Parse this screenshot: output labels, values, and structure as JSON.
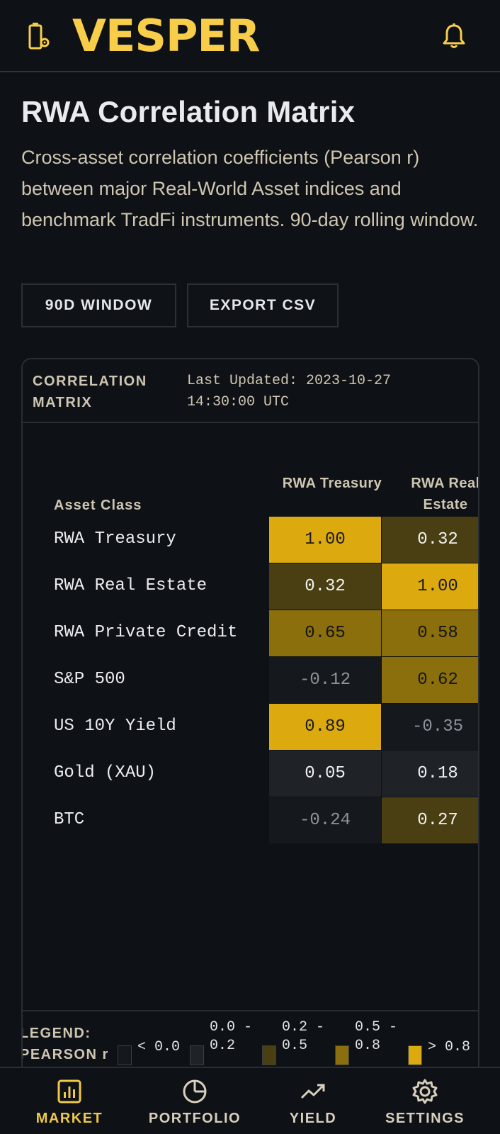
{
  "app": {
    "brand": "VESPER"
  },
  "page": {
    "title": "RWA Correlation Matrix",
    "description": "Cross-asset correlation coefficients (Pearson r) between major Real-World Asset indices and benchmark TradFi instruments. 90-day rolling window."
  },
  "actions": {
    "window_label": "90D WINDOW",
    "export_label": "EXPORT CSV"
  },
  "card": {
    "label": "CORRELATION MATRIX",
    "updated": "Last Updated: 2023-10-27 14:30:00 UTC"
  },
  "matrix": {
    "asset_header": "Asset Class",
    "columns": [
      "RWA Treasury",
      "RWA Real Estate"
    ],
    "rows": [
      {
        "label": "RWA Treasury",
        "values": [
          "1.00",
          "0.32"
        ]
      },
      {
        "label": "RWA Real Estate",
        "values": [
          "0.32",
          "1.00"
        ]
      },
      {
        "label": "RWA Private Credit",
        "values": [
          "0.65",
          "0.58"
        ]
      },
      {
        "label": "S&P 500",
        "values": [
          "-0.12",
          "0.62"
        ]
      },
      {
        "label": "US 10Y Yield",
        "values": [
          "0.89",
          "-0.35"
        ]
      },
      {
        "label": "Gold (XAU)",
        "values": [
          "0.05",
          "0.18"
        ]
      },
      {
        "label": "BTC",
        "values": [
          "-0.24",
          "0.27"
        ]
      }
    ]
  },
  "legend": {
    "title": "LEGEND: PEARSON r",
    "items": [
      {
        "text": "< 0.0",
        "color": "#15181c"
      },
      {
        "text": "0.0 - 0.2",
        "color": "#1f2328"
      },
      {
        "text": "0.2 - 0.5",
        "color": "#4a3f12"
      },
      {
        "text": "0.5 - 0.8",
        "color": "#8a6f0c"
      },
      {
        "text": "> 0.8",
        "color": "#dcaa0e"
      }
    ]
  },
  "nav": {
    "items": [
      {
        "label": "MARKET",
        "icon": "bar-chart-icon",
        "active": true
      },
      {
        "label": "PORTFOLIO",
        "icon": "pie-chart-icon",
        "active": false
      },
      {
        "label": "YIELD",
        "icon": "trending-up-icon",
        "active": false
      },
      {
        "label": "SETTINGS",
        "icon": "gear-icon",
        "active": false
      }
    ]
  },
  "colors": {
    "accent": "#f7cd4a",
    "cell_high": "#dcaa0e",
    "cell_mid": "#8a6f0c",
    "cell_low": "#4a3f12",
    "cell_neutral": "#1f2328",
    "cell_negative": "#15181c"
  }
}
